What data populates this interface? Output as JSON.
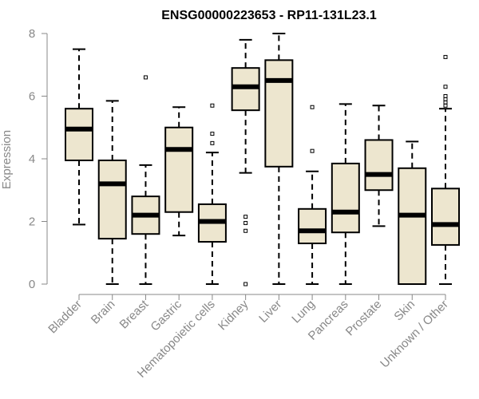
{
  "chart_data": {
    "type": "boxplot",
    "title": "ENSG00000223653 - RP11-131L23.1",
    "xlabel": "",
    "ylabel": "Expression",
    "ylim": [
      0,
      8
    ],
    "yticks": [
      0,
      2,
      4,
      6,
      8
    ],
    "box_color": "#ede6cf",
    "median_color": "#000000",
    "categories": [
      "Bladder",
      "Brain",
      "Breast",
      "Gastric",
      "Hematopoietic cells",
      "Kidney",
      "Liver",
      "Lung",
      "Pancreas",
      "Prostate",
      "Skin",
      "Unknown / Other"
    ],
    "boxes": [
      {
        "name": "Bladder",
        "whisker_low": 1.9,
        "q1": 3.95,
        "median": 4.95,
        "q3": 5.6,
        "whisker_high": 7.5,
        "outliers": []
      },
      {
        "name": "Brain",
        "whisker_low": 0.0,
        "q1": 1.45,
        "median": 3.2,
        "q3": 3.95,
        "whisker_high": 5.85,
        "outliers": []
      },
      {
        "name": "Breast",
        "whisker_low": 0.0,
        "q1": 1.6,
        "median": 2.2,
        "q3": 2.8,
        "whisker_high": 3.8,
        "outliers": [
          6.6
        ]
      },
      {
        "name": "Gastric",
        "whisker_low": 1.55,
        "q1": 2.3,
        "median": 4.3,
        "q3": 5.0,
        "whisker_high": 5.65,
        "outliers": []
      },
      {
        "name": "Hematopoietic cells",
        "whisker_low": 0.0,
        "q1": 1.35,
        "median": 2.0,
        "q3": 2.55,
        "whisker_high": 4.2,
        "outliers": [
          4.5,
          4.8,
          5.7
        ]
      },
      {
        "name": "Kidney",
        "whisker_low": 3.55,
        "q1": 5.55,
        "median": 6.3,
        "q3": 6.9,
        "whisker_high": 7.8,
        "outliers": [
          0.0,
          1.7,
          1.95,
          2.15
        ]
      },
      {
        "name": "Liver",
        "whisker_low": 0.0,
        "q1": 3.75,
        "median": 6.5,
        "q3": 7.15,
        "whisker_high": 8.0,
        "outliers": []
      },
      {
        "name": "Lung",
        "whisker_low": 0.0,
        "q1": 1.3,
        "median": 1.7,
        "q3": 2.4,
        "whisker_high": 3.6,
        "outliers": [
          4.25,
          5.65
        ]
      },
      {
        "name": "Pancreas",
        "whisker_low": 0.0,
        "q1": 1.65,
        "median": 2.3,
        "q3": 3.85,
        "whisker_high": 5.75,
        "outliers": []
      },
      {
        "name": "Prostate",
        "whisker_low": 1.85,
        "q1": 3.0,
        "median": 3.5,
        "q3": 4.6,
        "whisker_high": 5.7,
        "outliers": []
      },
      {
        "name": "Skin",
        "whisker_low": 0.0,
        "q1": 0.0,
        "median": 2.2,
        "q3": 3.7,
        "whisker_high": 4.55,
        "outliers": []
      },
      {
        "name": "Unknown / Other",
        "whisker_low": 0.0,
        "q1": 1.25,
        "median": 1.9,
        "q3": 3.05,
        "whisker_high": 5.6,
        "outliers": [
          5.7,
          5.8,
          5.9,
          6.0,
          6.3,
          7.25
        ]
      }
    ]
  }
}
